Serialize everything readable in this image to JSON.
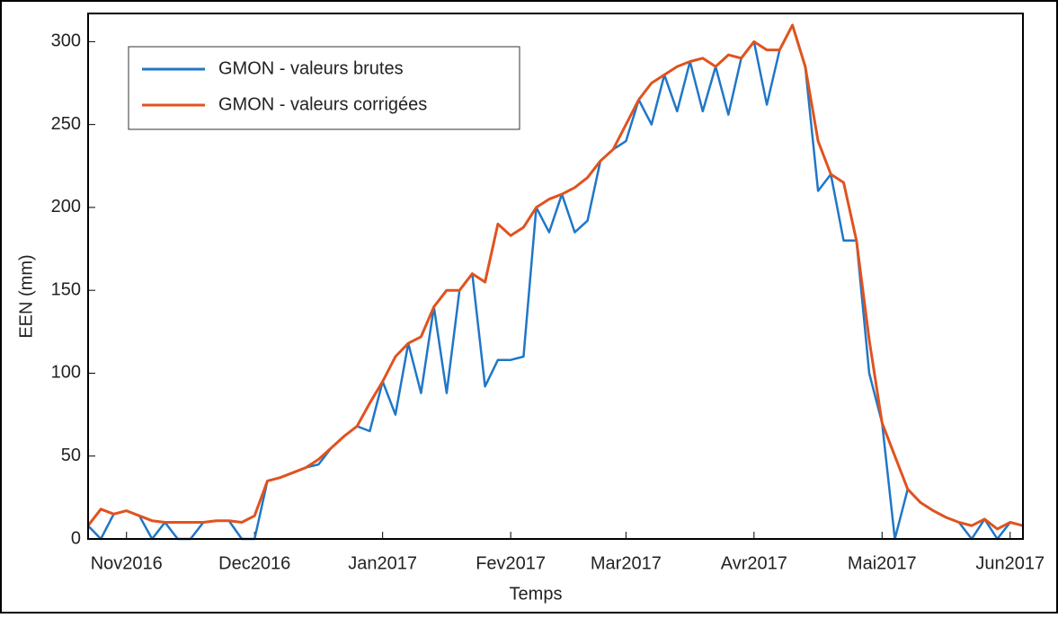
{
  "chart_data": {
    "type": "line",
    "xlabel": "Temps",
    "ylabel": "EEN (mm)",
    "categories": [
      null,
      null,
      null,
      "Nov2016",
      null,
      null,
      null,
      null,
      null,
      null,
      null,
      null,
      null,
      "Dec2016",
      null,
      null,
      null,
      null,
      null,
      null,
      null,
      null,
      null,
      "Jan2017",
      null,
      null,
      null,
      null,
      null,
      null,
      null,
      null,
      null,
      "Fev2017",
      null,
      null,
      null,
      null,
      null,
      null,
      null,
      null,
      "Mar2017",
      null,
      null,
      null,
      null,
      null,
      null,
      null,
      null,
      null,
      "Avr2017",
      null,
      null,
      null,
      null,
      null,
      null,
      null,
      null,
      null,
      "Mai2017",
      null,
      null,
      null,
      null,
      null,
      null,
      null,
      null,
      null,
      "Jun2017",
      null
    ],
    "series": [
      {
        "name": "GMON - valeurs brutes",
        "color": "#1f77c8",
        "values": [
          8,
          0,
          15,
          17,
          14,
          0,
          10,
          0,
          0,
          10,
          11,
          11,
          0,
          0,
          35,
          37,
          40,
          43,
          45,
          55,
          62,
          68,
          65,
          95,
          75,
          118,
          88,
          140,
          88,
          150,
          160,
          92,
          108,
          108,
          110,
          200,
          185,
          208,
          185,
          192,
          228,
          235,
          240,
          265,
          250,
          280,
          258,
          288,
          258,
          285,
          256,
          290,
          300,
          262,
          295,
          310,
          285,
          210,
          220,
          180,
          180,
          100,
          70,
          0,
          30,
          22,
          17,
          13,
          10,
          0,
          12,
          0,
          10,
          8
        ]
      },
      {
        "name": "GMON - valeurs corrigées",
        "color": "#e0531f",
        "values": [
          8,
          18,
          15,
          17,
          14,
          11,
          10,
          10,
          10,
          10,
          11,
          11,
          10,
          14,
          35,
          37,
          40,
          43,
          48,
          55,
          62,
          68,
          82,
          95,
          110,
          118,
          122,
          140,
          150,
          150,
          160,
          155,
          190,
          183,
          188,
          200,
          205,
          208,
          212,
          218,
          228,
          235,
          250,
          265,
          275,
          280,
          285,
          288,
          290,
          285,
          292,
          290,
          300,
          295,
          295,
          310,
          285,
          240,
          220,
          215,
          180,
          120,
          70,
          50,
          30,
          22,
          17,
          13,
          10,
          8,
          12,
          6,
          10,
          8
        ]
      }
    ],
    "ylim": [
      0,
      317
    ],
    "yticks": [
      0,
      50,
      100,
      150,
      200,
      250,
      300
    ],
    "grid": false,
    "legend": "top-left"
  }
}
